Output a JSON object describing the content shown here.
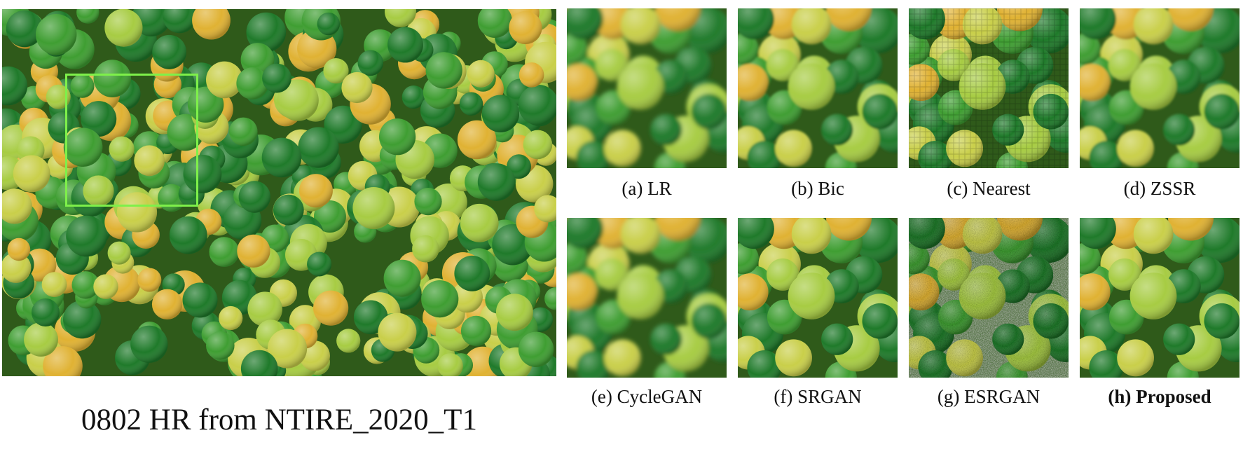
{
  "figure": {
    "main_caption": "0802 HR from NTIRE_2020_T1",
    "panels": [
      {
        "caption": "(a) LR",
        "style": "blur"
      },
      {
        "caption": "(b) Bic",
        "style": "soft"
      },
      {
        "caption": "(c) Nearest",
        "style": "pixel"
      },
      {
        "caption": "(d) ZSSR",
        "style": "soft"
      },
      {
        "caption": "(e) CycleGAN",
        "style": "blur"
      },
      {
        "caption": "(f) SRGAN",
        "style": "sharp"
      },
      {
        "caption": "(g) ESRGAN",
        "style": "noisy"
      },
      {
        "caption": "(h) Proposed",
        "style": "sharp"
      }
    ]
  },
  "colors": {
    "roi_box": "#7ef04a",
    "dark_green": "#1f7a2a",
    "green": "#3f9e32",
    "light_green": "#a7cc43",
    "yellow_green": "#c9cf4a",
    "yellow": "#e0b233",
    "background": "#2f5a1a"
  }
}
